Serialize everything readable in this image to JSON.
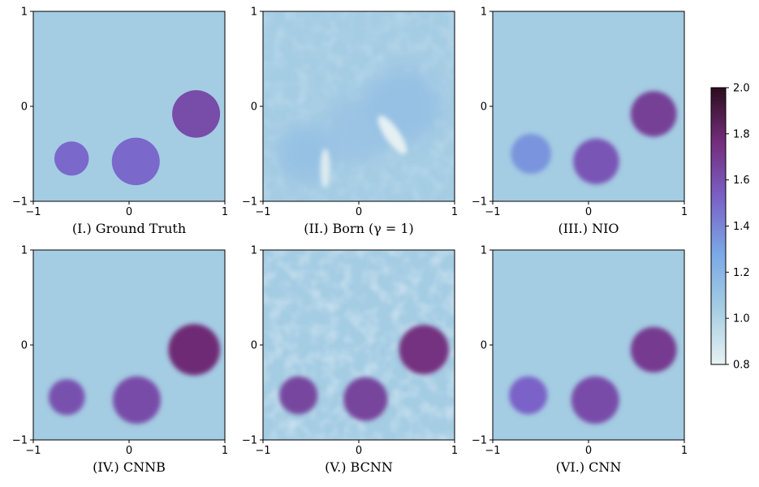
{
  "chart_data": {
    "type": "heatmap",
    "colorbar": {
      "min": 0.8,
      "max": 2.0,
      "ticks": [
        "2.0",
        "1.8",
        "1.6",
        "1.4",
        "1.2",
        "1.0",
        "0.8"
      ],
      "colors": [
        "#e6f2f2",
        "#a6cde3",
        "#7aa9e6",
        "#7a62c8",
        "#742e7d",
        "#2d0d1e"
      ]
    },
    "background_value": 1.05,
    "panels": [
      {
        "title": "(I.) Ground Truth",
        "xticks": [
          "−1",
          "0",
          "1"
        ],
        "yticks": [
          "1",
          "0",
          "−1"
        ],
        "style": "sharp",
        "objects": [
          {
            "x": -0.6,
            "y": -0.55,
            "r": 0.18,
            "value": 1.5
          },
          {
            "x": 0.07,
            "y": -0.58,
            "r": 0.25,
            "value": 1.5
          },
          {
            "x": 0.7,
            "y": -0.08,
            "r": 0.25,
            "value": 1.62
          }
        ]
      },
      {
        "title": "(II.) Born (γ = 1)",
        "xticks": [
          "−1",
          "0",
          "1"
        ],
        "yticks": [
          "1",
          "0",
          "−1"
        ],
        "style": "blur",
        "objects": [
          {
            "x": -0.55,
            "y": -0.5,
            "r": 0.3,
            "value": 1.12
          },
          {
            "x": 0.0,
            "y": -0.25,
            "r": 0.35,
            "value": 1.1
          },
          {
            "x": 0.45,
            "y": 0.0,
            "r": 0.4,
            "value": 1.12
          }
        ]
      },
      {
        "title": "(III.) NIO",
        "xticks": [
          "−1",
          "0",
          "1"
        ],
        "yticks": [
          "1",
          "0",
          "−1"
        ],
        "style": "soft",
        "objects": [
          {
            "x": -0.6,
            "y": -0.5,
            "r": 0.21,
            "value": 1.35
          },
          {
            "x": 0.08,
            "y": -0.58,
            "r": 0.24,
            "value": 1.58
          },
          {
            "x": 0.68,
            "y": -0.08,
            "r": 0.24,
            "value": 1.68
          }
        ]
      },
      {
        "title": "(IV.) CNNB",
        "xticks": [
          "−1",
          "0",
          "1"
        ],
        "yticks": [
          "1",
          "0",
          "−1"
        ],
        "style": "soft",
        "objects": [
          {
            "x": -0.65,
            "y": -0.55,
            "r": 0.19,
            "value": 1.6
          },
          {
            "x": 0.08,
            "y": -0.58,
            "r": 0.25,
            "value": 1.62
          },
          {
            "x": 0.68,
            "y": -0.05,
            "r": 0.27,
            "value": 1.78
          }
        ]
      },
      {
        "title": "(V.) BCNN",
        "xticks": [
          "−1",
          "0",
          "1"
        ],
        "yticks": [
          "1",
          "0",
          "−1"
        ],
        "style": "noisy",
        "objects": [
          {
            "x": -0.63,
            "y": -0.53,
            "r": 0.2,
            "value": 1.65
          },
          {
            "x": 0.07,
            "y": -0.57,
            "r": 0.23,
            "value": 1.66
          },
          {
            "x": 0.68,
            "y": -0.05,
            "r": 0.26,
            "value": 1.75
          }
        ]
      },
      {
        "title": "(VI.) CNN",
        "xticks": [
          "−1",
          "0",
          "1"
        ],
        "yticks": [
          "1",
          "0",
          "−1"
        ],
        "style": "soft",
        "objects": [
          {
            "x": -0.63,
            "y": -0.53,
            "r": 0.2,
            "value": 1.52
          },
          {
            "x": 0.07,
            "y": -0.58,
            "r": 0.25,
            "value": 1.62
          },
          {
            "x": 0.68,
            "y": -0.05,
            "r": 0.24,
            "value": 1.7
          }
        ]
      }
    ]
  }
}
